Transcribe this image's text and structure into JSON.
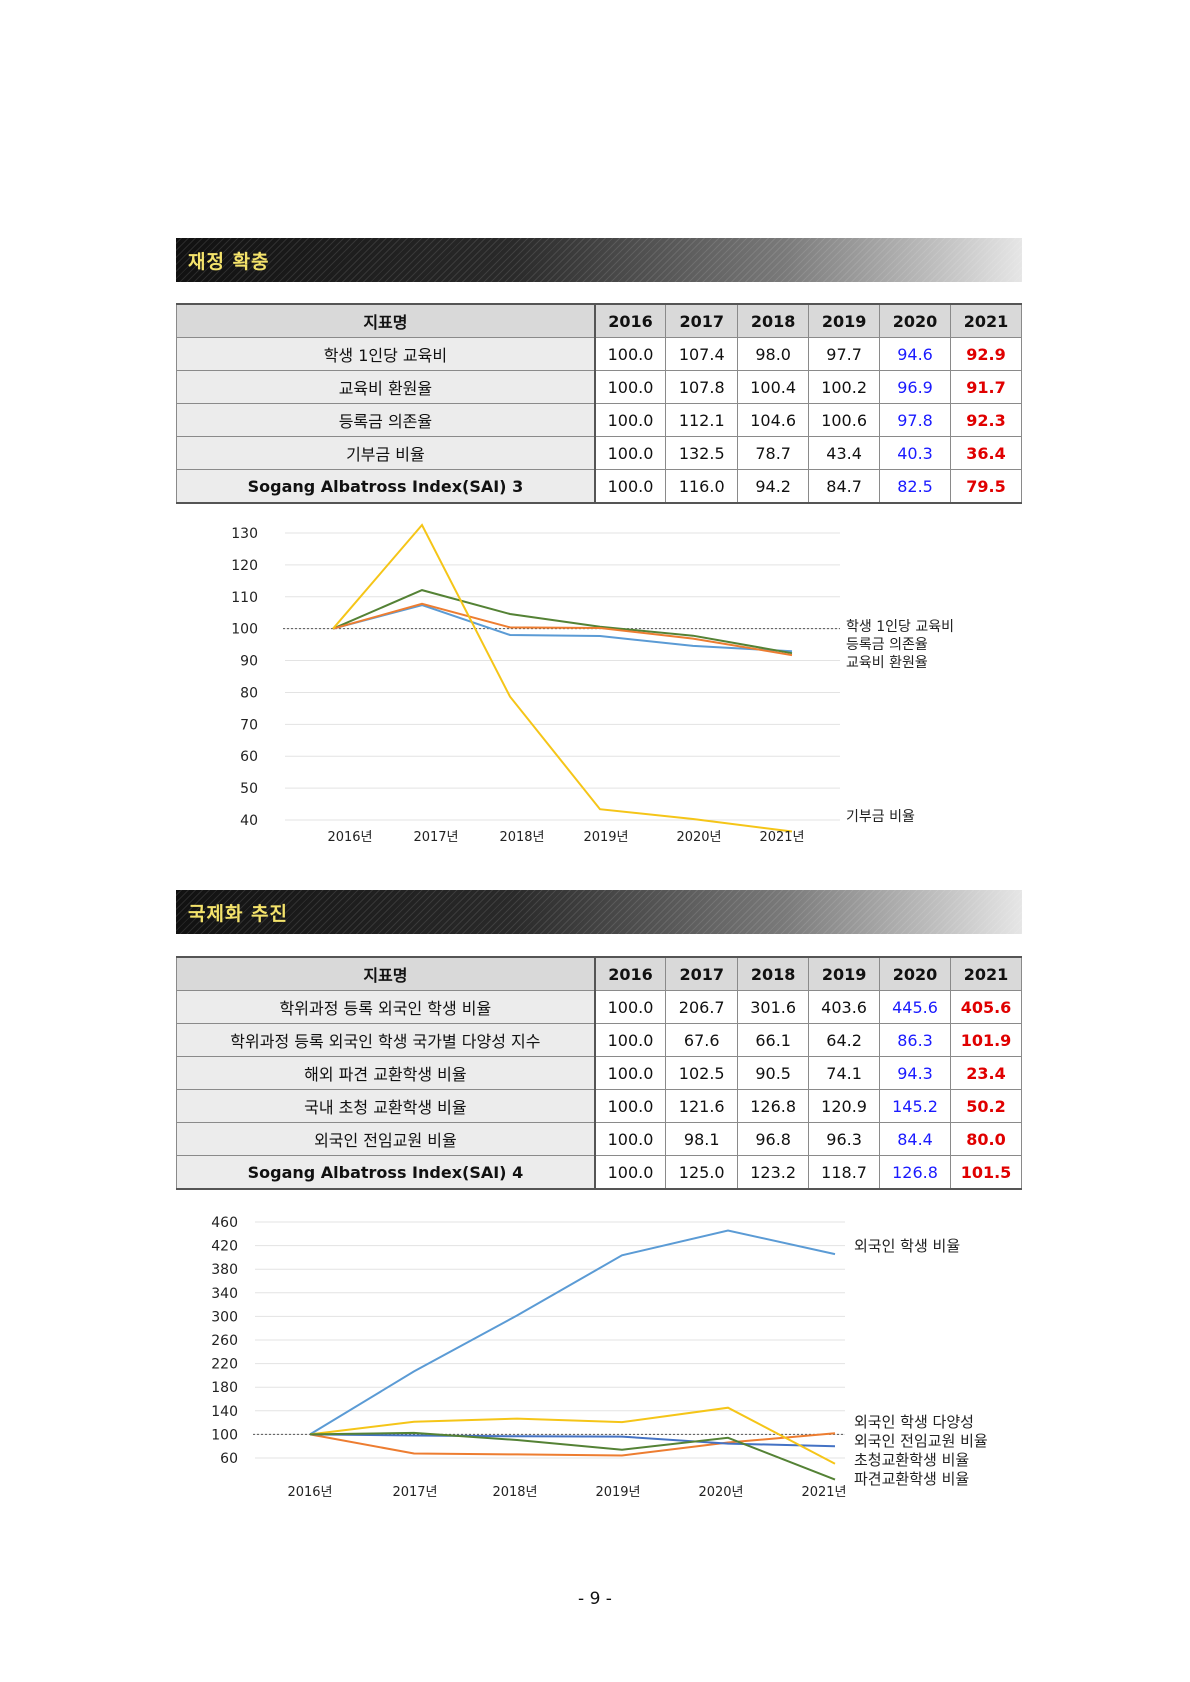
{
  "sections": [
    {
      "title": "재정 확충",
      "table": {
        "headers": [
          "지표명",
          "2016",
          "2017",
          "2018",
          "2019",
          "2020",
          "2021"
        ],
        "rows": [
          {
            "name": "학생 1인당 교육비",
            "values": [
              "100.0",
              "107.4",
              "98.0",
              "97.7",
              "94.6",
              "92.9"
            ]
          },
          {
            "name": "교육비 환원율",
            "values": [
              "100.0",
              "107.8",
              "100.4",
              "100.2",
              "96.9",
              "91.7"
            ]
          },
          {
            "name": "등록금 의존율",
            "values": [
              "100.0",
              "112.1",
              "104.6",
              "100.6",
              "97.8",
              "92.3"
            ]
          },
          {
            "name": "기부금 비율",
            "values": [
              "100.0",
              "132.5",
              "78.7",
              "43.4",
              "40.3",
              "36.4"
            ]
          },
          {
            "name": "Sogang Albatross Index(SAI) 3",
            "values": [
              "100.0",
              "116.0",
              "94.2",
              "84.7",
              "82.5",
              "79.5"
            ]
          }
        ]
      }
    },
    {
      "title": "국제화 추진",
      "table": {
        "headers": [
          "지표명",
          "2016",
          "2017",
          "2018",
          "2019",
          "2020",
          "2021"
        ],
        "rows": [
          {
            "name": "학위과정 등록 외국인 학생 비율",
            "values": [
              "100.0",
              "206.7",
              "301.6",
              "403.6",
              "445.6",
              "405.6"
            ]
          },
          {
            "name": "학위과정 등록 외국인 학생 국가별 다양성 지수",
            "values": [
              "100.0",
              "67.6",
              "66.1",
              "64.2",
              "86.3",
              "101.9"
            ]
          },
          {
            "name": "해외 파견 교환학생 비율",
            "values": [
              "100.0",
              "102.5",
              "90.5",
              "74.1",
              "94.3",
              "23.4"
            ]
          },
          {
            "name": "국내 초청 교환학생 비율",
            "values": [
              "100.0",
              "121.6",
              "126.8",
              "120.9",
              "145.2",
              "50.2"
            ]
          },
          {
            "name": "외국인 전임교원 비율",
            "values": [
              "100.0",
              "98.1",
              "96.8",
              "96.3",
              "84.4",
              "80.0"
            ]
          },
          {
            "name": "Sogang Albatross Index(SAI) 4",
            "values": [
              "100.0",
              "125.0",
              "123.2",
              "118.7",
              "126.8",
              "101.5"
            ]
          }
        ]
      }
    }
  ],
  "chart_data": [
    {
      "type": "line",
      "categories": [
        "2016년",
        "2017년",
        "2018년",
        "2019년",
        "2020년",
        "2021년"
      ],
      "y_ticks": [
        130,
        120,
        110,
        100,
        90,
        80,
        70,
        60,
        50,
        40
      ],
      "ylim": [
        40,
        130
      ],
      "reference_line": 100,
      "series": [
        {
          "name": "학생 1인당 교육비",
          "color": "#5b9bd5",
          "values": [
            100.0,
            107.4,
            98.0,
            97.7,
            94.6,
            92.9
          ]
        },
        {
          "name": "등록금 의존율",
          "color": "#548235",
          "values": [
            100.0,
            112.1,
            104.6,
            100.6,
            97.8,
            92.3
          ]
        },
        {
          "name": "교육비 환원율",
          "color": "#ed7d31",
          "values": [
            100.0,
            107.8,
            100.4,
            100.2,
            96.9,
            91.7
          ]
        },
        {
          "name": "기부금 비율",
          "color": "#f5c518",
          "values": [
            100.0,
            132.5,
            78.7,
            43.4,
            40.3,
            36.4
          ]
        }
      ],
      "legend_labels": [
        "학생 1인당 교육비",
        "등록금 의존율",
        "교육비 환원율",
        "기부금 비율"
      ]
    },
    {
      "type": "line",
      "categories": [
        "2016년",
        "2017년",
        "2018년",
        "2019년",
        "2020년",
        "2021년"
      ],
      "y_ticks": [
        460,
        420,
        380,
        340,
        300,
        260,
        220,
        180,
        140,
        100,
        60
      ],
      "ylim": [
        60,
        460
      ],
      "reference_line": 100,
      "series": [
        {
          "name": "외국인 학생 비율",
          "color": "#5b9bd5",
          "values": [
            100.0,
            206.7,
            301.6,
            403.6,
            445.6,
            405.6
          ]
        },
        {
          "name": "외국인 학생 다양성",
          "color": "#ed7d31",
          "values": [
            100.0,
            67.6,
            66.1,
            64.2,
            86.3,
            101.9
          ]
        },
        {
          "name": "외국인 전임교원 비율",
          "color": "#4472c4",
          "values": [
            100.0,
            98.1,
            96.8,
            96.3,
            84.4,
            80.0
          ]
        },
        {
          "name": "초청교환학생 비율",
          "color": "#f5c518",
          "values": [
            100.0,
            121.6,
            126.8,
            120.9,
            145.2,
            50.2
          ]
        },
        {
          "name": "파견교환학생 비율",
          "color": "#548235",
          "values": [
            100.0,
            102.5,
            90.5,
            74.1,
            94.3,
            23.4
          ]
        }
      ],
      "legend_labels": [
        "외국인 학생 비율",
        "외국인 학생 다양성",
        "외국인 전임교원 비율",
        "초청교환학생 비율",
        "파견교환학생 비율"
      ]
    }
  ],
  "page_number": "- 9 -"
}
